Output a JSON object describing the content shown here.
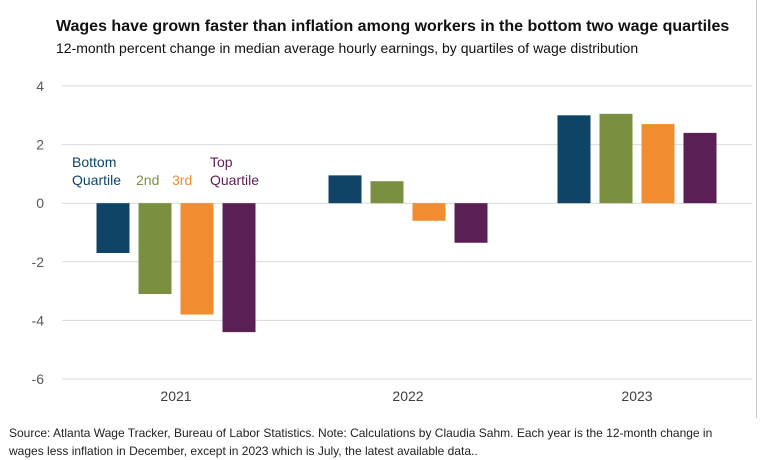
{
  "title": "Wages have grown faster than inflation among workers in the bottom two wage quartiles",
  "subtitle": "12-month percent change in median average hourly earnings, by quartiles of wage distribution",
  "chart_data": {
    "type": "bar",
    "categories": [
      "2021",
      "2022",
      "2023"
    ],
    "series": [
      {
        "name": "Bottom Quartile",
        "label_lines": [
          "Bottom",
          "Quartile"
        ],
        "color": "#0f4466",
        "values": [
          -1.7,
          0.95,
          3.0
        ]
      },
      {
        "name": "2nd",
        "label_lines": [
          "2nd"
        ],
        "color": "#7a9040",
        "values": [
          -3.1,
          0.75,
          3.05
        ]
      },
      {
        "name": "3rd",
        "label_lines": [
          "3rd"
        ],
        "color": "#f28c30",
        "values": [
          -3.8,
          -0.6,
          2.7
        ]
      },
      {
        "name": "Top Quartile",
        "label_lines": [
          "Top",
          "Quartile"
        ],
        "color": "#5a1f55",
        "values": [
          -4.4,
          -1.35,
          2.4
        ]
      }
    ],
    "ylim": [
      -6,
      4
    ],
    "yticks": [
      4,
      2,
      0,
      -2,
      -4,
      -6
    ],
    "grid": true,
    "xlabel": "",
    "ylabel": ""
  },
  "source": {
    "line1": "Source: Atlanta Wage Tracker, Bureau of Labor Statistics. Note: Calculations by Claudia Sahm. Each year is the 12-month change in",
    "line2": "wages less inflation in December, except in 2023 which is July, the latest available data.."
  }
}
